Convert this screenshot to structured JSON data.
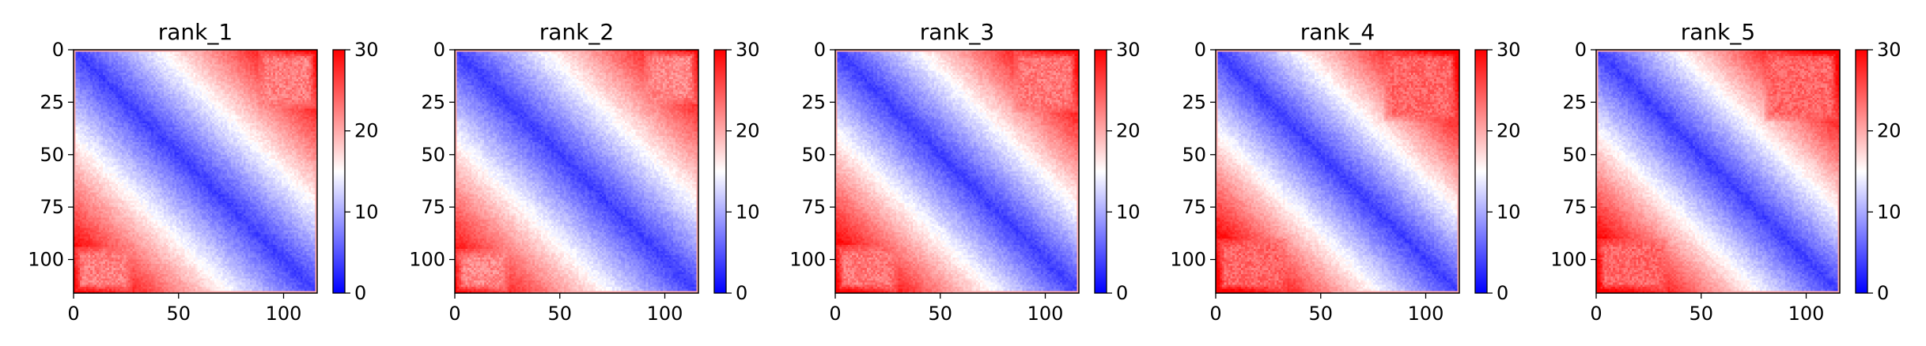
{
  "chart_data": [
    {
      "type": "heatmap",
      "title": "rank_1",
      "matrix_size": 116,
      "x_ticks": [
        0,
        50,
        100
      ],
      "y_ticks": [
        0,
        25,
        50,
        75,
        100
      ],
      "xlim": [
        0,
        116
      ],
      "ylim": [
        116,
        0
      ],
      "colorbar": {
        "min": 0,
        "max": 30,
        "ticks": [
          0,
          10,
          20,
          30
        ],
        "colormap": "bwr"
      },
      "value_model": {
        "base": 3.5,
        "per_residue": 0.28,
        "max": 30
      },
      "red_regions": [
        {
          "rows": [
            0,
            28
          ],
          "cols": [
            88,
            116
          ],
          "value": 22.5
        },
        {
          "rows": [
            94,
            116
          ],
          "cols": [
            0,
            28
          ],
          "value": 22.5
        }
      ]
    },
    {
      "type": "heatmap",
      "title": "rank_2",
      "matrix_size": 116,
      "x_ticks": [
        0,
        50,
        100
      ],
      "y_ticks": [
        0,
        25,
        50,
        75,
        100
      ],
      "xlim": [
        0,
        116
      ],
      "ylim": [
        116,
        0
      ],
      "colorbar": {
        "min": 0,
        "max": 30,
        "ticks": [
          0,
          10,
          20,
          30
        ],
        "colormap": "bwr"
      },
      "value_model": {
        "base": 3.5,
        "per_residue": 0.27,
        "max": 30
      },
      "red_regions": [
        {
          "rows": [
            0,
            26
          ],
          "cols": [
            90,
            116
          ],
          "value": 22
        },
        {
          "rows": [
            95,
            116
          ],
          "cols": [
            0,
            26
          ],
          "value": 22
        }
      ]
    },
    {
      "type": "heatmap",
      "title": "rank_3",
      "matrix_size": 116,
      "x_ticks": [
        0,
        50,
        100
      ],
      "y_ticks": [
        0,
        25,
        50,
        75,
        100
      ],
      "xlim": [
        0,
        116
      ],
      "ylim": [
        116,
        0
      ],
      "colorbar": {
        "min": 0,
        "max": 30,
        "ticks": [
          0,
          10,
          20,
          30
        ],
        "colormap": "bwr"
      },
      "value_model": {
        "base": 3.5,
        "per_residue": 0.29,
        "max": 30
      },
      "red_regions": [
        {
          "rows": [
            0,
            30
          ],
          "cols": [
            85,
            116
          ],
          "value": 23
        },
        {
          "rows": [
            93,
            116
          ],
          "cols": [
            0,
            30
          ],
          "value": 23
        }
      ]
    },
    {
      "type": "heatmap",
      "title": "rank_4",
      "matrix_size": 116,
      "x_ticks": [
        0,
        50,
        100
      ],
      "y_ticks": [
        0,
        25,
        50,
        75,
        100
      ],
      "xlim": [
        0,
        116
      ],
      "ylim": [
        116,
        0
      ],
      "colorbar": {
        "min": 0,
        "max": 30,
        "ticks": [
          0,
          10,
          20,
          30
        ],
        "colormap": "bwr"
      },
      "value_model": {
        "base": 3.5,
        "per_residue": 0.3,
        "max": 30
      },
      "red_regions": [
        {
          "rows": [
            0,
            34
          ],
          "cols": [
            80,
            116
          ],
          "value": 24
        },
        {
          "rows": [
            90,
            116
          ],
          "cols": [
            0,
            34
          ],
          "value": 24
        }
      ]
    },
    {
      "type": "heatmap",
      "title": "rank_5",
      "matrix_size": 116,
      "x_ticks": [
        0,
        50,
        100
      ],
      "y_ticks": [
        0,
        25,
        50,
        75,
        100
      ],
      "xlim": [
        0,
        116
      ],
      "ylim": [
        116,
        0
      ],
      "colorbar": {
        "min": 0,
        "max": 30,
        "ticks": [
          0,
          10,
          20,
          30
        ],
        "colormap": "bwr"
      },
      "value_model": {
        "base": 3.5,
        "per_residue": 0.3,
        "max": 30
      },
      "red_regions": [
        {
          "rows": [
            0,
            34
          ],
          "cols": [
            80,
            116
          ],
          "value": 24
        },
        {
          "rows": [
            90,
            116
          ],
          "cols": [
            0,
            34
          ],
          "value": 24
        }
      ]
    }
  ]
}
